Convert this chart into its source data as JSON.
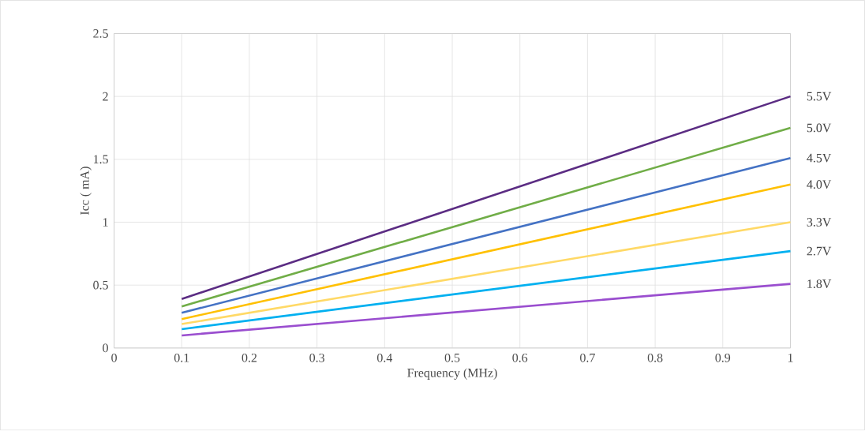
{
  "chart_data": {
    "type": "line",
    "xlabel": "Frequency (MHz)",
    "ylabel": "Icc ( mA)",
    "x": [
      0.1,
      1
    ],
    "series": [
      {
        "name": "5.5V",
        "color": "#5b2c83",
        "values": [
          0.39,
          2.0
        ]
      },
      {
        "name": "5.0V",
        "color": "#70ad47",
        "values": [
          0.33,
          1.75
        ]
      },
      {
        "name": "4.5V",
        "color": "#4472c4",
        "values": [
          0.28,
          1.51
        ]
      },
      {
        "name": "4.0V",
        "color": "#ffc000",
        "values": [
          0.23,
          1.3
        ]
      },
      {
        "name": "3.3V",
        "color": "#ffd966",
        "values": [
          0.19,
          1.0
        ]
      },
      {
        "name": "2.7V",
        "color": "#00b0f0",
        "values": [
          0.15,
          0.77
        ]
      },
      {
        "name": "1.8V",
        "color": "#9a4ecf",
        "values": [
          0.1,
          0.51
        ]
      }
    ],
    "xlim": [
      0,
      1
    ],
    "ylim": [
      0,
      2.5
    ],
    "xticks": [
      0,
      0.1,
      0.2,
      0.3,
      0.4,
      0.5,
      0.6,
      0.7,
      0.8,
      0.9,
      1
    ],
    "yticks": [
      0,
      0.5,
      1,
      1.5,
      2,
      2.5
    ],
    "grid": true,
    "legend": false,
    "marker": "none",
    "line_style": "solid"
  }
}
